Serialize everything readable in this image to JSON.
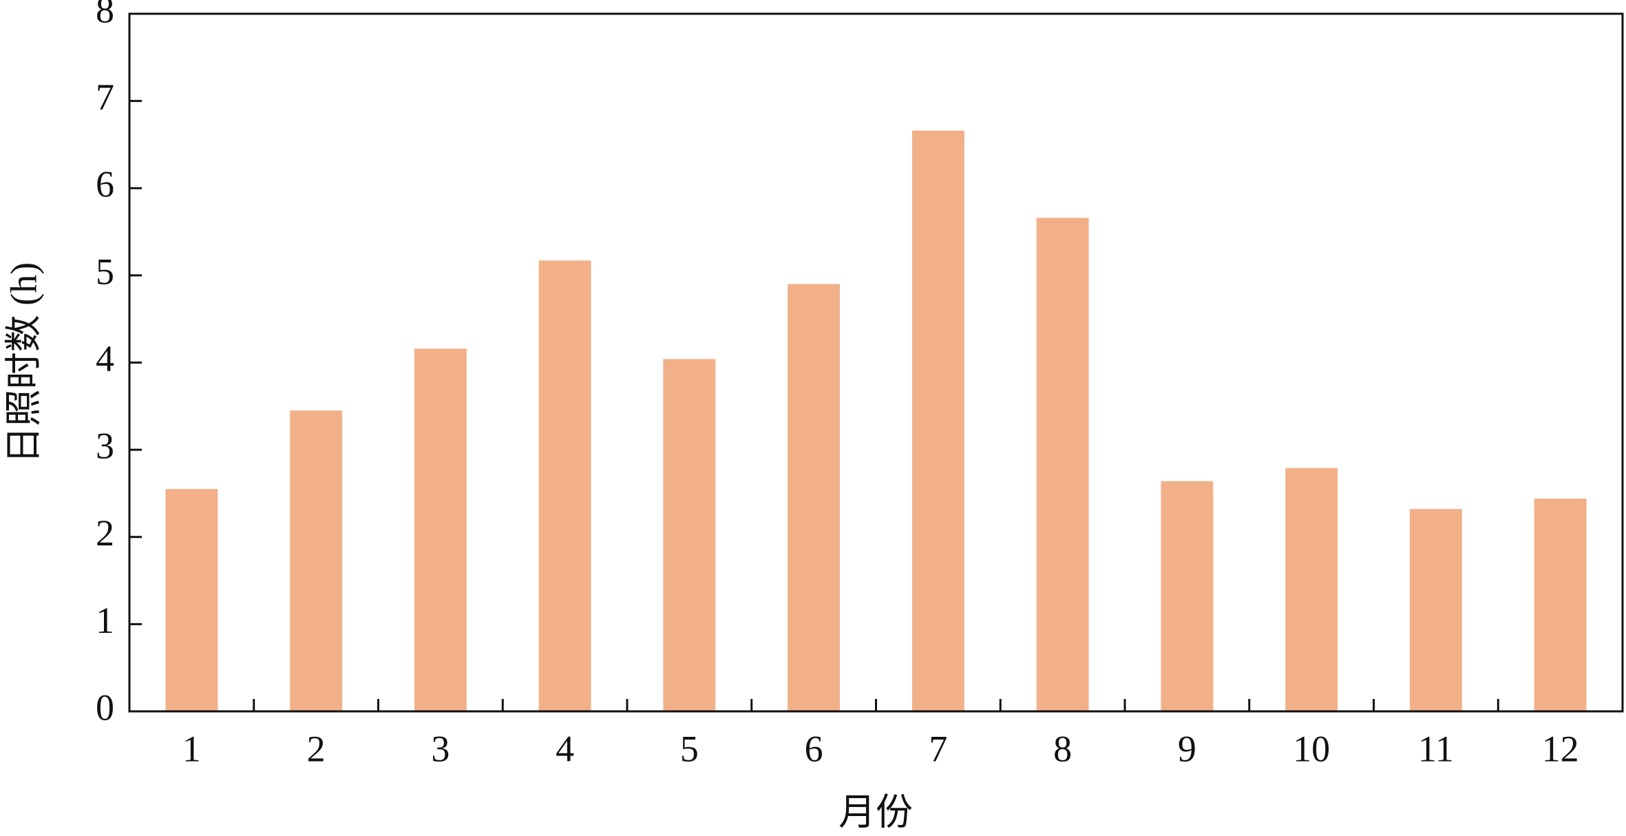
{
  "chart_data": {
    "type": "bar",
    "x_label": "月份",
    "y_label": "日照时数 (h)",
    "categories": [
      "1",
      "2",
      "3",
      "4",
      "5",
      "6",
      "7",
      "8",
      "9",
      "10",
      "11",
      "12"
    ],
    "values": [
      2.55,
      3.45,
      4.16,
      5.17,
      4.04,
      4.9,
      6.66,
      5.66,
      2.64,
      2.79,
      2.32,
      2.44
    ],
    "color": "#f2b088",
    "ylim": [
      0,
      8
    ],
    "yticks": [
      0,
      1,
      2,
      3,
      4,
      5,
      6,
      7,
      8
    ],
    "grid": false
  }
}
